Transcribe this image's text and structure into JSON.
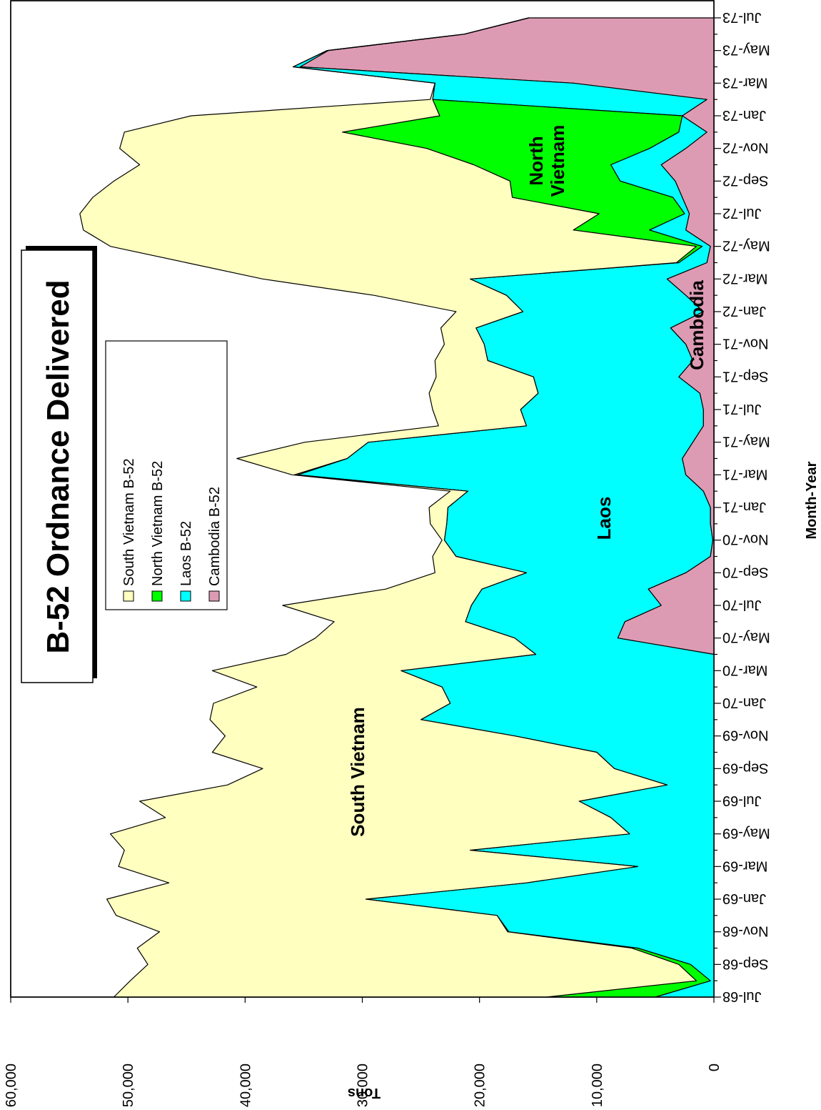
{
  "chart_data": {
    "type": "stacked_area",
    "title": "B-52 Ordnance Delivered",
    "x_label": "Month-Year",
    "y_label": "Tons",
    "categories": [
      "Jul-68",
      null,
      "Sep-68",
      null,
      "Nov-68",
      null,
      "Jan-69",
      null,
      "Mar-69",
      null,
      "May-69",
      null,
      "Jul-69",
      null,
      "Sep-69",
      null,
      "Nov-69",
      null,
      "Jan-70",
      null,
      "Mar-70",
      null,
      "May-70",
      null,
      "Jul-70",
      null,
      "Sep-70",
      null,
      "Nov-70",
      null,
      "Jan-71",
      null,
      "Mar-71",
      null,
      "May-71",
      null,
      "Jul-71",
      null,
      "Sep-71",
      null,
      "Nov-71",
      null,
      "Jan-72",
      null,
      "Mar-72",
      null,
      "May-72",
      null,
      "Jul-72",
      null,
      "Sep-72",
      null,
      "Nov-72",
      null,
      "Jan-73",
      null,
      "Mar-73",
      null,
      "May-73",
      null,
      "Jul-73"
    ],
    "series": [
      {
        "name": "South Vietnam B-52",
        "color": "#ffffc0",
        "values": [
          36900,
          48300,
          45300,
          42200,
          29700,
          32500,
          22100,
          30500,
          44300,
          29500,
          44300,
          38000,
          37500,
          37500,
          30000,
          32800,
          24700,
          18000,
          20200,
          15800,
          16100,
          21300,
          17000,
          11200,
          16100,
          8200,
          7800,
          2000,
          200,
          1400,
          1600,
          1500,
          200,
          9400,
          5400,
          7500,
          7500,
          9300,
          8300,
          4500,
          3400,
          3000,
          5700,
          11300,
          17700,
          41800,
          50000,
          41800,
          44300,
          35800,
          33800,
          28500,
          26200,
          18600,
          21200,
          200,
          0,
          0,
          0,
          0,
          0
        ]
      },
      {
        "name": "North Vietnam B-52",
        "color": "#00ff00",
        "values": [
          9300,
          1200,
          1000,
          500,
          100,
          0,
          0,
          0,
          0,
          0,
          0,
          0,
          0,
          0,
          0,
          0,
          0,
          0,
          0,
          0,
          0,
          0,
          0,
          0,
          0,
          0,
          0,
          0,
          0,
          0,
          0,
          0,
          300,
          0,
          0,
          0,
          0,
          0,
          0,
          0,
          0,
          0,
          0,
          0,
          0,
          200,
          500,
          6500,
          7300,
          13700,
          9400,
          11700,
          19000,
          28700,
          20700,
          0,
          0,
          0,
          0,
          0,
          0
        ]
      },
      {
        "name": "Laos B-52",
        "color": "#00ffff",
        "values": [
          5000,
          300,
          2000,
          6500,
          17500,
          18500,
          29700,
          16000,
          6500,
          20800,
          7200,
          8800,
          11500,
          4000,
          8500,
          10000,
          17000,
          25000,
          22500,
          23200,
          26700,
          15200,
          8800,
          13600,
          16200,
          14200,
          13600,
          21700,
          22900,
          22500,
          22400,
          20100,
          33100,
          28600,
          27700,
          15100,
          15600,
          13800,
          12400,
          17500,
          17200,
          16600,
          15400,
          15300,
          16800,
          2400,
          700,
          3100,
          400,
          800,
          4700,
          4300,
          3100,
          2400,
          0,
          23400,
          11800,
          600,
          100,
          0,
          0
        ]
      },
      {
        "name": "Cambodia B-52",
        "color": "#dd9bb3",
        "values": [
          0,
          0,
          0,
          0,
          0,
          0,
          0,
          0,
          0,
          0,
          0,
          0,
          0,
          0,
          0,
          0,
          0,
          0,
          0,
          0,
          0,
          0,
          8200,
          7600,
          4500,
          5600,
          2400,
          300,
          100,
          300,
          300,
          900,
          2400,
          2700,
          1800,
          900,
          900,
          1200,
          3000,
          1800,
          2400,
          3700,
          900,
          2400,
          4000,
          600,
          300,
          2400,
          2100,
          2700,
          3300,
          4500,
          2400,
          600,
          2700,
          600,
          12000,
          35300,
          32900,
          21300,
          15800
        ]
      }
    ],
    "ylim": [
      0,
      60000
    ],
    "yticks": [
      0,
      {
        "value": 10000,
        "label": "10,000"
      },
      {
        "value": 20000,
        "label": "20,000"
      },
      {
        "value": 30000,
        "label": "30,000"
      },
      {
        "value": 40000,
        "label": "40,000"
      },
      {
        "value": 50000,
        "label": "50,000"
      },
      {
        "value": 60000,
        "label": "60,000"
      }
    ],
    "annotations": [
      "South Vietnam",
      "Laos",
      "North Vietnam",
      "Cambodia"
    ]
  }
}
